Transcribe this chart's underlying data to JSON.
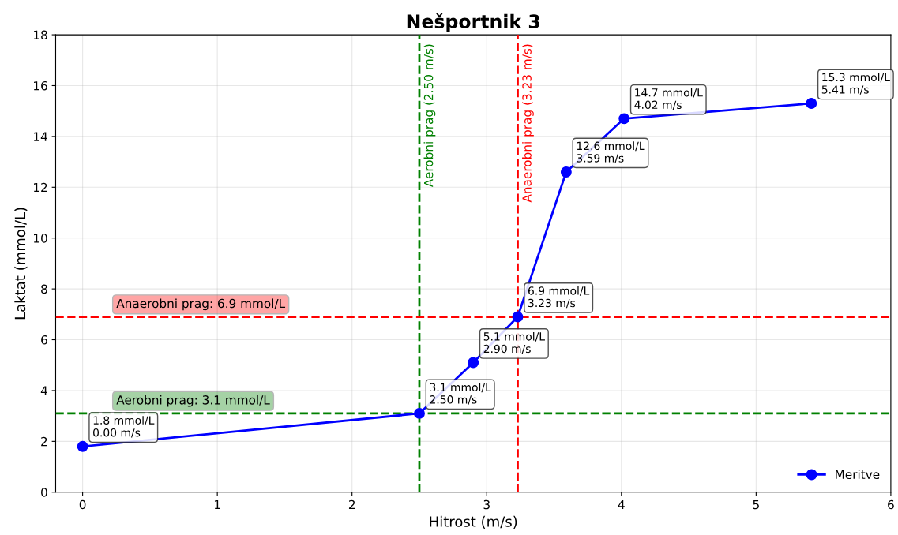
{
  "chart_data": {
    "type": "line",
    "title": "Nešportnik 3",
    "xlabel": "Hitrost (m/s)",
    "ylabel": "Laktat (mmol/L)",
    "x": [
      0.0,
      2.5,
      2.9,
      3.23,
      3.59,
      4.02,
      5.41
    ],
    "series": [
      {
        "name": "Meritve",
        "color": "#0000ff",
        "values": [
          1.8,
          3.1,
          5.1,
          6.9,
          12.6,
          14.7,
          15.3
        ],
        "value_labels": [
          "1.8 mmol/L\n0.00 m/s",
          "3.1 mmol/L\n2.50 m/s",
          "5.1 mmol/L\n2.90 m/s",
          "6.9 mmol/L\n3.23 m/s",
          "12.6 mmol/L\n3.59 m/s",
          "14.7 mmol/L\n4.02 m/s",
          "15.3 mmol/L\n5.41 m/s"
        ]
      }
    ],
    "marker": "circle",
    "line_style": "solid",
    "xlim": [
      -0.2,
      6
    ],
    "xticks": [
      0,
      1,
      2,
      3,
      4,
      5,
      6
    ],
    "ylim": [
      0,
      18
    ],
    "yticks": [
      0,
      2,
      4,
      6,
      8,
      10,
      12,
      14,
      16,
      18
    ],
    "ref_lines": [
      {
        "axis": "x",
        "value": 2.5,
        "label": "Aerobni prag (2.50 m/s)",
        "color": "#008000",
        "line_style": "dashed"
      },
      {
        "axis": "x",
        "value": 3.23,
        "label": "Anaerobni prag (3.23 m/s)",
        "color": "#ff0000",
        "line_style": "dashed"
      },
      {
        "axis": "y",
        "value": 3.1,
        "label": "Aerobni prag: 3.1 mmol/L",
        "color": "#008000",
        "line_style": "dashed"
      },
      {
        "axis": "y",
        "value": 6.9,
        "label": "Anaerobni prag: 6.9 mmol/L",
        "color": "#ff0000",
        "line_style": "dashed"
      }
    ],
    "grid": true,
    "legend": "lower right"
  }
}
